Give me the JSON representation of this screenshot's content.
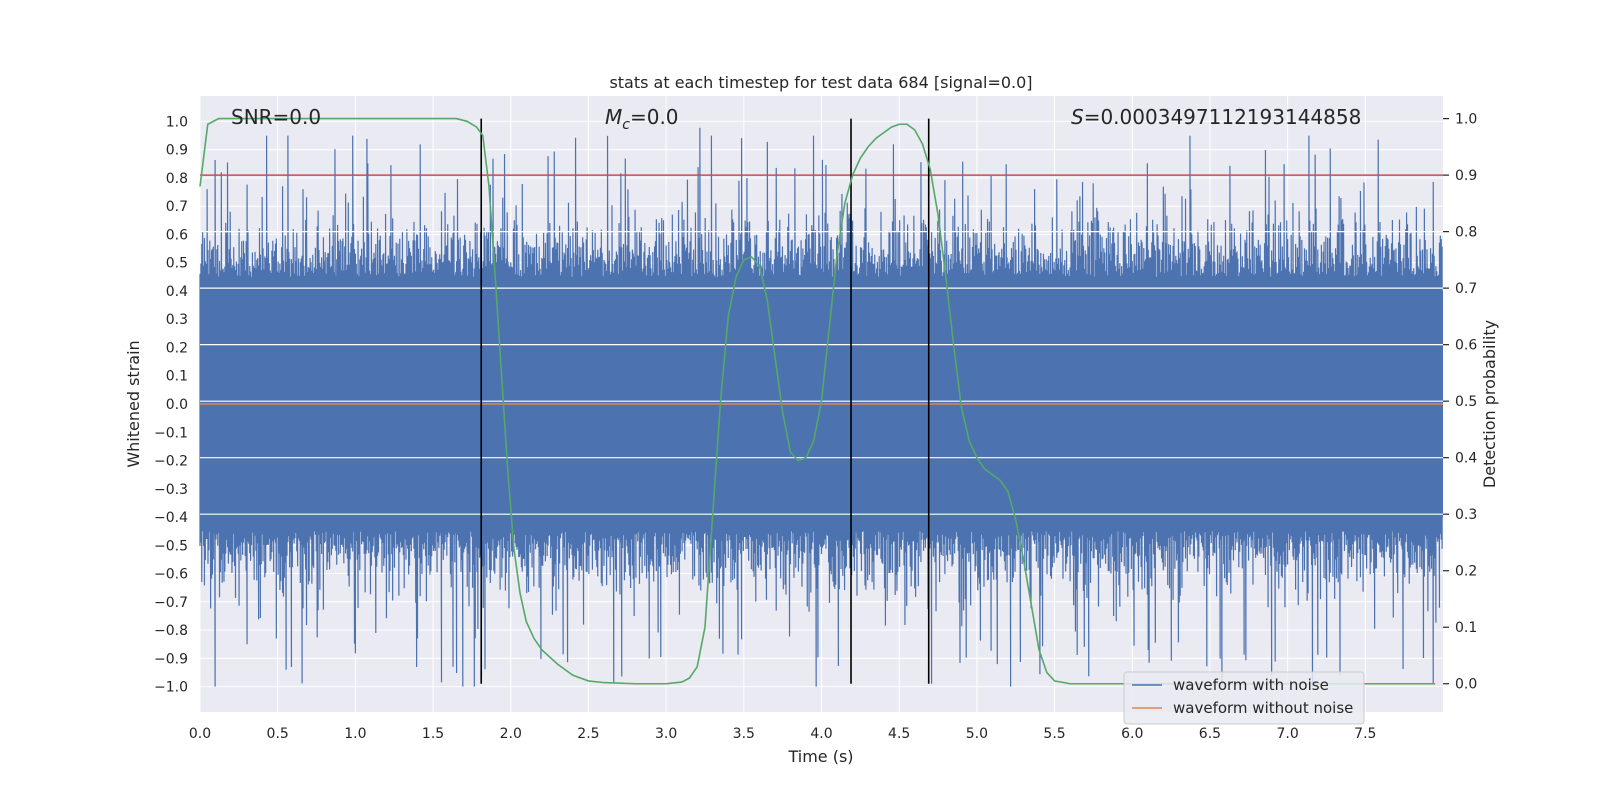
{
  "chart_data": {
    "type": "line",
    "title": "stats at each timestep for test data 684 [signal=0.0]",
    "xlabel": "Time (s)",
    "ylabel": "Whitened strain",
    "ylabel_right": "Detection probability",
    "xlim": [
      0.0,
      8.0
    ],
    "ylim": [
      -1.09,
      1.09
    ],
    "ylim_right": [
      -0.05,
      1.04
    ],
    "x_ticks": [
      0.0,
      0.5,
      1.0,
      1.5,
      2.0,
      2.5,
      3.0,
      3.5,
      4.0,
      4.5,
      5.0,
      5.5,
      6.0,
      6.5,
      7.0,
      7.5
    ],
    "x_tick_labels": [
      "0.0",
      "0.5",
      "1.0",
      "1.5",
      "2.0",
      "2.5",
      "3.0",
      "3.5",
      "4.0",
      "4.5",
      "5.0",
      "5.5",
      "6.0",
      "6.5",
      "7.0",
      "7.5"
    ],
    "y_ticks": [
      -1.0,
      -0.9,
      -0.8,
      -0.7,
      -0.6,
      -0.5,
      -0.4,
      -0.3,
      -0.2,
      -0.1,
      0.0,
      0.1,
      0.2,
      0.3,
      0.4,
      0.5,
      0.6,
      0.7,
      0.8,
      0.9,
      1.0
    ],
    "y_tick_labels": [
      "−1.0",
      "−0.9",
      "−0.8",
      "−0.7",
      "−0.6",
      "−0.5",
      "−0.4",
      "−0.3",
      "−0.2",
      "−0.1",
      "0.0",
      "0.1",
      "0.2",
      "0.3",
      "0.4",
      "0.5",
      "0.6",
      "0.7",
      "0.8",
      "0.9",
      "1.0"
    ],
    "y_right_ticks": [
      0.0,
      0.1,
      0.2,
      0.3,
      0.4,
      0.5,
      0.6,
      0.7,
      0.8,
      0.9,
      1.0
    ],
    "y_right_tick_labels": [
      "0.0",
      "0.1",
      "0.2",
      "0.3",
      "0.4",
      "0.5",
      "0.6",
      "0.7",
      "0.8",
      "0.9",
      "1.0"
    ],
    "annotations": {
      "snr": "SNR=0.0",
      "mc_symbol": "M",
      "mc_subscript": "c",
      "mc_value": "=0.0",
      "s_symbol": "S",
      "s_value": "=0.0003497112193144858"
    },
    "threshold": 0.9,
    "vertical_lines": [
      1.81,
      4.19,
      4.69
    ],
    "noise_envelope": [
      0.45,
      0.85
    ],
    "series": [
      {
        "name": "waveform with noise",
        "color": "#4c72b0",
        "axis": "left"
      },
      {
        "name": "waveform without noise",
        "color": "#dd8452",
        "axis": "left",
        "value": 0.0
      },
      {
        "axis": "right",
        "color": "#55a868",
        "x": [
          0.0,
          0.05,
          0.12,
          0.2,
          0.5,
          1.0,
          1.5,
          1.65,
          1.72,
          1.78,
          1.82,
          1.86,
          1.9,
          1.94,
          1.98,
          2.02,
          2.06,
          2.1,
          2.15,
          2.2,
          2.3,
          2.4,
          2.5,
          2.6,
          2.8,
          3.0,
          3.1,
          3.15,
          3.2,
          3.25,
          3.3,
          3.35,
          3.4,
          3.45,
          3.5,
          3.55,
          3.6,
          3.65,
          3.7,
          3.75,
          3.8,
          3.85,
          3.9,
          3.95,
          4.0,
          4.05,
          4.1,
          4.15,
          4.2,
          4.25,
          4.3,
          4.35,
          4.4,
          4.45,
          4.5,
          4.55,
          4.6,
          4.65,
          4.7,
          4.75,
          4.8,
          4.85,
          4.9,
          4.95,
          5.0,
          5.05,
          5.1,
          5.15,
          5.2,
          5.25,
          5.3,
          5.35,
          5.4,
          5.45,
          5.5,
          5.6,
          6.0,
          7.0,
          7.95
        ],
        "y": [
          0.88,
          0.99,
          1.0,
          1.0,
          1.0,
          1.0,
          1.0,
          1.0,
          0.995,
          0.985,
          0.97,
          0.88,
          0.72,
          0.55,
          0.38,
          0.24,
          0.16,
          0.11,
          0.08,
          0.06,
          0.035,
          0.015,
          0.005,
          0.002,
          0.0,
          0.0,
          0.003,
          0.01,
          0.03,
          0.1,
          0.3,
          0.5,
          0.65,
          0.72,
          0.75,
          0.755,
          0.74,
          0.68,
          0.58,
          0.48,
          0.41,
          0.395,
          0.4,
          0.43,
          0.5,
          0.63,
          0.76,
          0.85,
          0.9,
          0.93,
          0.95,
          0.965,
          0.975,
          0.985,
          0.99,
          0.99,
          0.98,
          0.955,
          0.91,
          0.83,
          0.72,
          0.6,
          0.49,
          0.43,
          0.4,
          0.38,
          0.37,
          0.36,
          0.34,
          0.29,
          0.22,
          0.14,
          0.06,
          0.02,
          0.005,
          0.0,
          0.0,
          0.0,
          0.0
        ]
      }
    ],
    "legend": {
      "position": "lower-right",
      "entries": [
        "waveform with noise",
        "waveform without noise"
      ]
    },
    "grid": true,
    "colors": {
      "background": "#eaeaf2",
      "grid": "#ffffff",
      "noise": "#4c72b0",
      "clean": "#dd8452",
      "probability": "#55a868",
      "threshold": "#c44e52",
      "vline": "#000000"
    }
  }
}
